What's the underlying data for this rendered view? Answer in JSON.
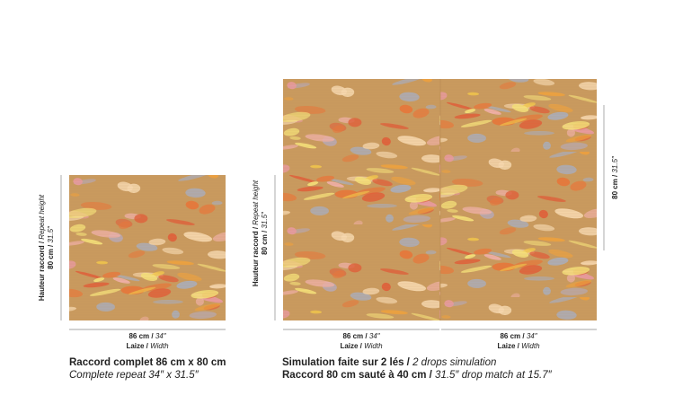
{
  "left": {
    "height_label": {
      "fr": "Hauteur raccord / ",
      "en": "Repeat height"
    },
    "height_value": {
      "fr": "80 cm / ",
      "en": "31.5″"
    },
    "width_value": {
      "fr": "86 cm / ",
      "en": "34″"
    },
    "width_label": {
      "fr": "Laize / ",
      "en": "Width"
    },
    "caption": {
      "line1": "Raccord complet 86 cm x 80 cm",
      "line2": "Complete repeat 34″ x 31.5″"
    }
  },
  "right": {
    "height_label": {
      "fr": "Hauteur raccord / ",
      "en": "Repeat height"
    },
    "height_value": {
      "fr": "80 cm / ",
      "en": "31.5″"
    },
    "widths": [
      {
        "value": {
          "fr": "86 cm / ",
          "en": "34″"
        },
        "label": {
          "fr": "Laize / ",
          "en": "Width"
        }
      },
      {
        "value": {
          "fr": "86 cm / ",
          "en": "34″"
        },
        "label": {
          "fr": "Laize / ",
          "en": "Width"
        }
      }
    ],
    "drop_height_value": {
      "fr": "80 cm / ",
      "en": "31.5″"
    },
    "caption": {
      "line1": {
        "fr": "Simulation faite sur 2 lés / ",
        "en": "2 drops simulation"
      },
      "line2": {
        "fr": "Raccord 80 cm sauté à 40 cm / ",
        "en": "31.5″ drop match at 15.7″"
      }
    }
  }
}
